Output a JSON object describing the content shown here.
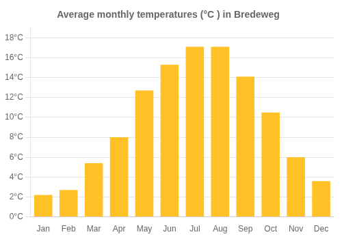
{
  "chart_data": {
    "type": "bar",
    "title": "Average monthly temperatures (°C ) in Bredeweg",
    "categories": [
      "Jan",
      "Feb",
      "Mar",
      "Apr",
      "May",
      "Jun",
      "Jul",
      "Aug",
      "Sep",
      "Oct",
      "Nov",
      "Dec"
    ],
    "values": [
      2.2,
      2.7,
      5.4,
      8.0,
      12.7,
      15.3,
      17.1,
      17.1,
      14.1,
      10.5,
      6.0,
      3.6
    ],
    "color": "#FFC125",
    "ylim": [
      0,
      19
    ],
    "yticks": [
      {
        "value": 0,
        "label": "0°C"
      },
      {
        "value": 2,
        "label": "2°C"
      },
      {
        "value": 4,
        "label": "4°C"
      },
      {
        "value": 6,
        "label": "6°C"
      },
      {
        "value": 8,
        "label": "8°C"
      },
      {
        "value": 10,
        "label": "10°C"
      },
      {
        "value": 12,
        "label": "12°C"
      },
      {
        "value": 14,
        "label": "14°C"
      },
      {
        "value": 16,
        "label": "16°C"
      },
      {
        "value": 18,
        "label": "18°C"
      }
    ],
    "grid": true
  }
}
